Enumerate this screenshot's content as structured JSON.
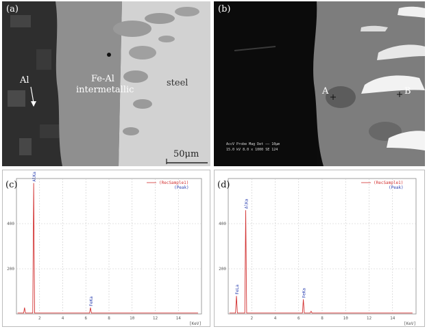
{
  "panels": {
    "a": {
      "label": "(a)",
      "al_label": "Al",
      "intermetallic_line1": "Fe-Al",
      "intermetallic_line2": "intermetallic",
      "steel_label": "steel",
      "scale_label": "50μm"
    },
    "b": {
      "label": "(b)",
      "point_a": "A",
      "point_b": "B",
      "meta_header": "AccV   Probe   Mag   Det   —— 10μm",
      "meta_values": "15.0 kV   8.0   x 1000   SE   124"
    },
    "c": {
      "label": "(c)"
    },
    "d": {
      "label": "(d)"
    }
  },
  "chart_data": [
    {
      "type": "line",
      "panel": "c",
      "y_unit": "[Counts]",
      "x_unit": "[KeV]",
      "xlim": [
        0,
        16
      ],
      "ylim": [
        0,
        600
      ],
      "x_ticks": [
        "2",
        "4",
        "6",
        "8",
        "10",
        "12",
        "14"
      ],
      "y_ticks": [
        "200",
        "400"
      ],
      "legend": [
        "(RecSample1)",
        "(Peak)"
      ],
      "peaks": [
        {
          "label": "AlKa",
          "x": 1.49,
          "y": 580
        },
        {
          "label": "FeKa",
          "x": 6.4,
          "y": 28
        }
      ],
      "minor_peaks": [
        {
          "x": 0.7,
          "y": 28
        }
      ]
    },
    {
      "type": "line",
      "panel": "d",
      "y_unit": "[Counts]",
      "x_unit": "[KeV]",
      "xlim": [
        0,
        16
      ],
      "ylim": [
        0,
        600
      ],
      "x_ticks": [
        "2",
        "4",
        "6",
        "8",
        "10",
        "12",
        "14"
      ],
      "y_ticks": [
        "200",
        "400"
      ],
      "legend": [
        "(RecSample1)",
        "(Peak)"
      ],
      "peaks": [
        {
          "label": "AlKa",
          "x": 1.49,
          "y": 460
        },
        {
          "label": "FeLa",
          "x": 0.7,
          "y": 80
        },
        {
          "label": "FeKa",
          "x": 6.4,
          "y": 65
        }
      ],
      "minor_peaks": [
        {
          "x": 7.06,
          "y": 12
        }
      ]
    }
  ],
  "colors": {
    "spectrum": "#d23030",
    "peak_label": "#2a3fb0",
    "grid": "#c8c8c8"
  }
}
